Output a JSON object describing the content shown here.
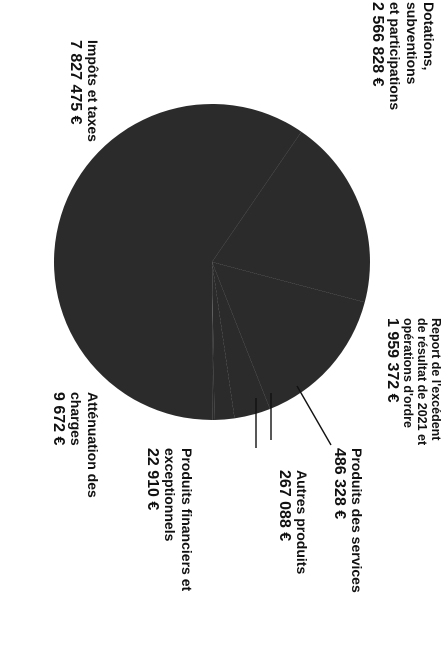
{
  "chart_data": {
    "type": "pie",
    "title": "",
    "slices": [
      {
        "label": "Impôts et taxes",
        "value_text": "7 827 475 €",
        "value": 7827475
      },
      {
        "label": "Dotations, subventions et participations",
        "value_text": "2 566 828 €",
        "value": 2566828
      },
      {
        "label": "Report de l'excédent de résultat de 2021 et opérations d'ordre",
        "value_text": "1 959 372 €",
        "value": 1959372
      },
      {
        "label": "Produits des services",
        "value_text": "486 328 €",
        "value": 486328
      },
      {
        "label": "Autres produits",
        "value_text": "267 088 €",
        "value": 267088
      },
      {
        "label": "Produits financiers et exceptionnels",
        "value_text": "22 910 €",
        "value": 22910
      },
      {
        "label": "Atténuation des charges",
        "value_text": "9 672 €",
        "value": 9672
      }
    ],
    "colors": {
      "slice": "#2b2b2b",
      "text": "#111111",
      "leader": "#111111"
    }
  }
}
